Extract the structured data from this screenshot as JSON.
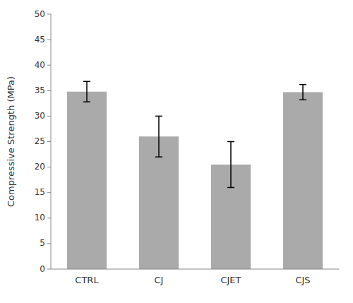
{
  "chart_data": {
    "type": "bar",
    "categories": [
      "CTRL",
      "CJ",
      "CJET",
      "CJS"
    ],
    "values": [
      34.8,
      26.0,
      20.5,
      34.7
    ],
    "errors": [
      2.0,
      4.0,
      4.5,
      1.5
    ],
    "color": "#aaaaaa",
    "ylabel": "Compressive Strength (MPa)",
    "ylim": [
      0,
      50
    ],
    "yticks": [
      0,
      5,
      10,
      15,
      20,
      25,
      30,
      35,
      40,
      45,
      50
    ],
    "grid": false
  }
}
